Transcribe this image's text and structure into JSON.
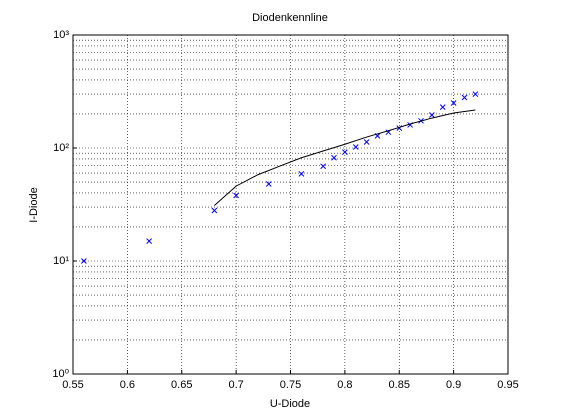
{
  "chart_data": {
    "type": "scatter",
    "title": "Diodenkennline",
    "xlabel": "U-Diode",
    "ylabel": "I-Diode",
    "xlim": [
      0.55,
      0.95
    ],
    "xticks": [
      0.55,
      0.6,
      0.65,
      0.7,
      0.75,
      0.8,
      0.85,
      0.9,
      0.95
    ],
    "ylim": [
      1,
      1000
    ],
    "yticks": [
      {
        "value": 1,
        "label": "10⁰"
      },
      {
        "value": 10,
        "label": "10¹"
      },
      {
        "value": 100,
        "label": "10²"
      },
      {
        "value": 1000,
        "label": "10³"
      }
    ],
    "yscale": "log",
    "grid": true,
    "series": [
      {
        "mode": "markers",
        "marker": "x",
        "color": "#0000ff",
        "x": [
          0.56,
          0.62,
          0.68,
          0.7,
          0.73,
          0.76,
          0.78,
          0.79,
          0.8,
          0.81,
          0.82,
          0.83,
          0.84,
          0.85,
          0.86,
          0.87,
          0.88,
          0.89,
          0.9,
          0.91,
          0.92
        ],
        "values": [
          10,
          15,
          28,
          38,
          48,
          59,
          69,
          82,
          92,
          102,
          113,
          128,
          138,
          150,
          160,
          174,
          196,
          230,
          250,
          280,
          300
        ]
      },
      {
        "mode": "lines",
        "color": "#000000",
        "x": [
          0.68,
          0.7,
          0.72,
          0.74,
          0.76,
          0.78,
          0.8,
          0.82,
          0.84,
          0.86,
          0.88,
          0.9,
          0.92
        ],
        "values": [
          31,
          46,
          58,
          69,
          82,
          94,
          108,
          125,
          142,
          163,
          184,
          204,
          217
        ]
      }
    ]
  }
}
